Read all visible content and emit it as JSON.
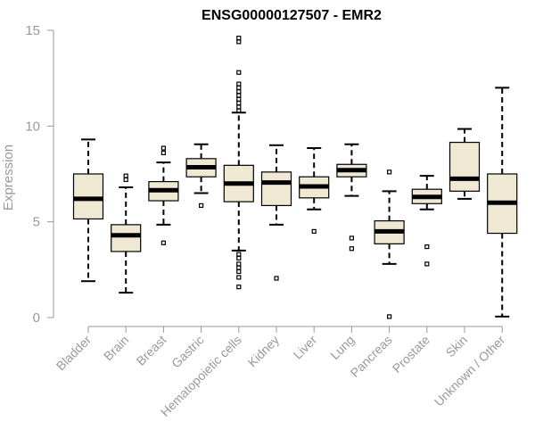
{
  "chart_data": {
    "type": "box",
    "title": "ENSG00000127507 - EMR2",
    "ylabel": "Expression",
    "xlabel": "",
    "ylim": [
      0,
      15
    ],
    "yticks": [
      0,
      5,
      10,
      15
    ],
    "grid": false,
    "legend": "none",
    "colors": {
      "box_fill": "#efe8d2",
      "stroke": "#000000",
      "axis": "#999999"
    },
    "categories": [
      {
        "label": "Bladder",
        "whisker_low": 1.9,
        "q1": 5.15,
        "median": 6.2,
        "q3": 7.5,
        "whisker_high": 9.3,
        "outliers": []
      },
      {
        "label": "Brain",
        "whisker_low": 1.3,
        "q1": 3.45,
        "median": 4.3,
        "q3": 4.85,
        "whisker_high": 6.8,
        "outliers": [
          7.2,
          7.4
        ]
      },
      {
        "label": "Breast",
        "whisker_low": 4.85,
        "q1": 6.1,
        "median": 6.65,
        "q3": 7.1,
        "whisker_high": 8.1,
        "outliers": [
          3.9,
          8.6,
          8.85
        ]
      },
      {
        "label": "Gastric",
        "whisker_low": 6.5,
        "q1": 7.35,
        "median": 7.85,
        "q3": 8.3,
        "whisker_high": 9.05,
        "outliers": [
          5.85
        ]
      },
      {
        "label": "Hematopoietic cells",
        "whisker_low": 3.5,
        "q1": 6.05,
        "median": 7.0,
        "q3": 7.95,
        "whisker_high": 10.7,
        "outliers": [
          1.6,
          2.1,
          2.4,
          2.6,
          2.8,
          3.1,
          3.3,
          10.8,
          11.0,
          11.2,
          11.4,
          11.6,
          11.8,
          12.0,
          12.2,
          12.8,
          14.4,
          14.6
        ]
      },
      {
        "label": "Kidney",
        "whisker_low": 4.85,
        "q1": 5.85,
        "median": 7.05,
        "q3": 7.6,
        "whisker_high": 9.0,
        "outliers": [
          2.05
        ]
      },
      {
        "label": "Liver",
        "whisker_low": 5.65,
        "q1": 6.25,
        "median": 6.85,
        "q3": 7.35,
        "whisker_high": 8.85,
        "outliers": [
          4.5
        ]
      },
      {
        "label": "Lung",
        "whisker_low": 6.35,
        "q1": 7.35,
        "median": 7.7,
        "q3": 8.0,
        "whisker_high": 9.05,
        "outliers": [
          3.6,
          4.15
        ]
      },
      {
        "label": "Pancreas",
        "whisker_low": 2.8,
        "q1": 3.85,
        "median": 4.5,
        "q3": 5.05,
        "whisker_high": 6.6,
        "outliers": [
          0.05,
          7.6
        ]
      },
      {
        "label": "Prostate",
        "whisker_low": 5.65,
        "q1": 5.95,
        "median": 6.3,
        "q3": 6.7,
        "whisker_high": 7.4,
        "outliers": [
          2.8,
          3.7
        ]
      },
      {
        "label": "Skin",
        "whisker_low": 6.2,
        "q1": 6.6,
        "median": 7.25,
        "q3": 9.15,
        "whisker_high": 9.85,
        "outliers": []
      },
      {
        "label": "Unknown / Other",
        "whisker_low": 0.05,
        "q1": 4.4,
        "median": 6.0,
        "q3": 7.5,
        "whisker_high": 12.0,
        "outliers": []
      }
    ]
  }
}
